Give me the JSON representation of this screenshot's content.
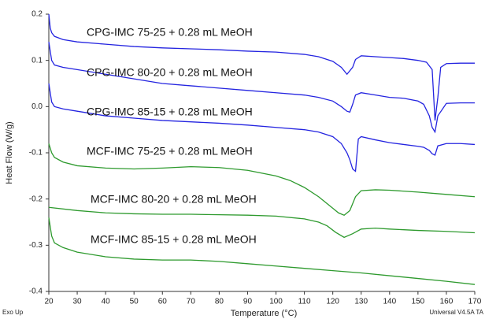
{
  "chart_data": {
    "type": "line",
    "xlabel": "Temperature (°C)",
    "ylabel": "Heat Flow (W/g)",
    "corner_left": "Exo Up",
    "corner_right": "Universal V4.5A TA",
    "xlim": [
      20,
      170
    ],
    "xticks": [
      20,
      30,
      40,
      50,
      60,
      70,
      80,
      90,
      100,
      110,
      120,
      130,
      140,
      150,
      160,
      170
    ],
    "ylim": [
      -0.4,
      0.2
    ],
    "yticks": [
      -0.4,
      -0.3,
      -0.2,
      -0.1,
      {
        "value": 0,
        "label": "0.0"
      },
      0.1,
      0.2
    ],
    "series": [
      {
        "name": "CPG-IMC 75-25 + 0.28 mL MeOH",
        "color": "#2424e0",
        "x": [
          20,
          20.5,
          21,
          22,
          25,
          30,
          40,
          50,
          60,
          70,
          80,
          90,
          100,
          110,
          115,
          120,
          123,
          125,
          127,
          128,
          130,
          135,
          140,
          145,
          150,
          153,
          155,
          156,
          157,
          158,
          160,
          165,
          170
        ],
        "values": [
          0.2,
          0.17,
          0.16,
          0.152,
          0.145,
          0.14,
          0.135,
          0.13,
          0.127,
          0.125,
          0.123,
          0.12,
          0.118,
          0.113,
          0.108,
          0.098,
          0.085,
          0.07,
          0.085,
          0.102,
          0.11,
          0.108,
          0.106,
          0.104,
          0.1,
          0.096,
          0.08,
          -0.03,
          0.02,
          0.085,
          0.093,
          0.094,
          0.094
        ]
      },
      {
        "name": "CPG-IMC 80-20 + 0.28 mL MeOH",
        "color": "#2424e0",
        "x": [
          20,
          21,
          22,
          25,
          30,
          40,
          50,
          60,
          70,
          80,
          90,
          100,
          110,
          115,
          120,
          123,
          125,
          126,
          127,
          128,
          130,
          135,
          140,
          145,
          150,
          152,
          154,
          155,
          156,
          157,
          160,
          165,
          170
        ],
        "values": [
          0.14,
          0.1,
          0.09,
          0.085,
          0.08,
          0.07,
          0.06,
          0.05,
          0.045,
          0.04,
          0.035,
          0.03,
          0.025,
          0.02,
          0.012,
          0.0,
          -0.01,
          -0.012,
          0.005,
          0.025,
          0.03,
          0.025,
          0.02,
          0.018,
          0.012,
          0.005,
          -0.02,
          -0.045,
          -0.055,
          -0.02,
          0.007,
          0.008,
          0.008
        ]
      },
      {
        "name": "CPG-IMC 85-15 + 0.28 mL MeOH",
        "color": "#2424e0",
        "x": [
          20,
          21,
          22,
          25,
          30,
          40,
          50,
          60,
          70,
          80,
          90,
          100,
          110,
          115,
          120,
          123,
          125,
          126,
          127,
          128,
          129,
          130,
          135,
          140,
          145,
          150,
          152,
          154,
          155,
          156,
          157,
          160,
          165,
          170
        ],
        "values": [
          0.05,
          0.01,
          0.0,
          -0.005,
          -0.01,
          -0.02,
          -0.025,
          -0.03,
          -0.033,
          -0.036,
          -0.04,
          -0.045,
          -0.05,
          -0.055,
          -0.065,
          -0.08,
          -0.1,
          -0.115,
          -0.135,
          -0.14,
          -0.07,
          -0.065,
          -0.072,
          -0.078,
          -0.082,
          -0.086,
          -0.088,
          -0.095,
          -0.102,
          -0.105,
          -0.085,
          -0.08,
          -0.08,
          -0.082
        ]
      },
      {
        "name": "MCF-IMC 75-25 + 0.28 mL MeOH",
        "color": "#2e9a2e",
        "x": [
          20,
          21,
          22,
          25,
          30,
          40,
          50,
          60,
          70,
          80,
          90,
          100,
          105,
          110,
          115,
          120,
          122,
          124,
          126,
          128,
          130,
          135,
          140,
          150,
          160,
          170
        ],
        "values": [
          -0.08,
          -0.1,
          -0.11,
          -0.12,
          -0.128,
          -0.133,
          -0.135,
          -0.133,
          -0.13,
          -0.132,
          -0.138,
          -0.15,
          -0.16,
          -0.175,
          -0.195,
          -0.22,
          -0.23,
          -0.235,
          -0.225,
          -0.195,
          -0.182,
          -0.18,
          -0.181,
          -0.185,
          -0.19,
          -0.195
        ]
      },
      {
        "name": "MCF-IMC 80-20 + 0.28 mL MeOH",
        "color": "#2e9a2e",
        "x": [
          20,
          30,
          40,
          50,
          60,
          70,
          80,
          90,
          100,
          110,
          115,
          118,
          121,
          124,
          127,
          130,
          135,
          140,
          150,
          160,
          170
        ],
        "values": [
          -0.218,
          -0.225,
          -0.23,
          -0.232,
          -0.233,
          -0.233,
          -0.234,
          -0.235,
          -0.237,
          -0.243,
          -0.25,
          -0.258,
          -0.272,
          -0.283,
          -0.275,
          -0.265,
          -0.263,
          -0.265,
          -0.268,
          -0.27,
          -0.273
        ]
      },
      {
        "name": "MCF-IMC 85-15 + 0.28 mL MeOH",
        "color": "#2e9a2e",
        "x": [
          20,
          21,
          22,
          25,
          30,
          40,
          50,
          60,
          70,
          80,
          90,
          100,
          110,
          120,
          130,
          140,
          150,
          160,
          170
        ],
        "values": [
          -0.24,
          -0.28,
          -0.295,
          -0.305,
          -0.315,
          -0.325,
          -0.33,
          -0.332,
          -0.332,
          -0.335,
          -0.34,
          -0.345,
          -0.35,
          -0.355,
          -0.36,
          -0.366,
          -0.372,
          -0.378,
          -0.385
        ]
      }
    ]
  }
}
